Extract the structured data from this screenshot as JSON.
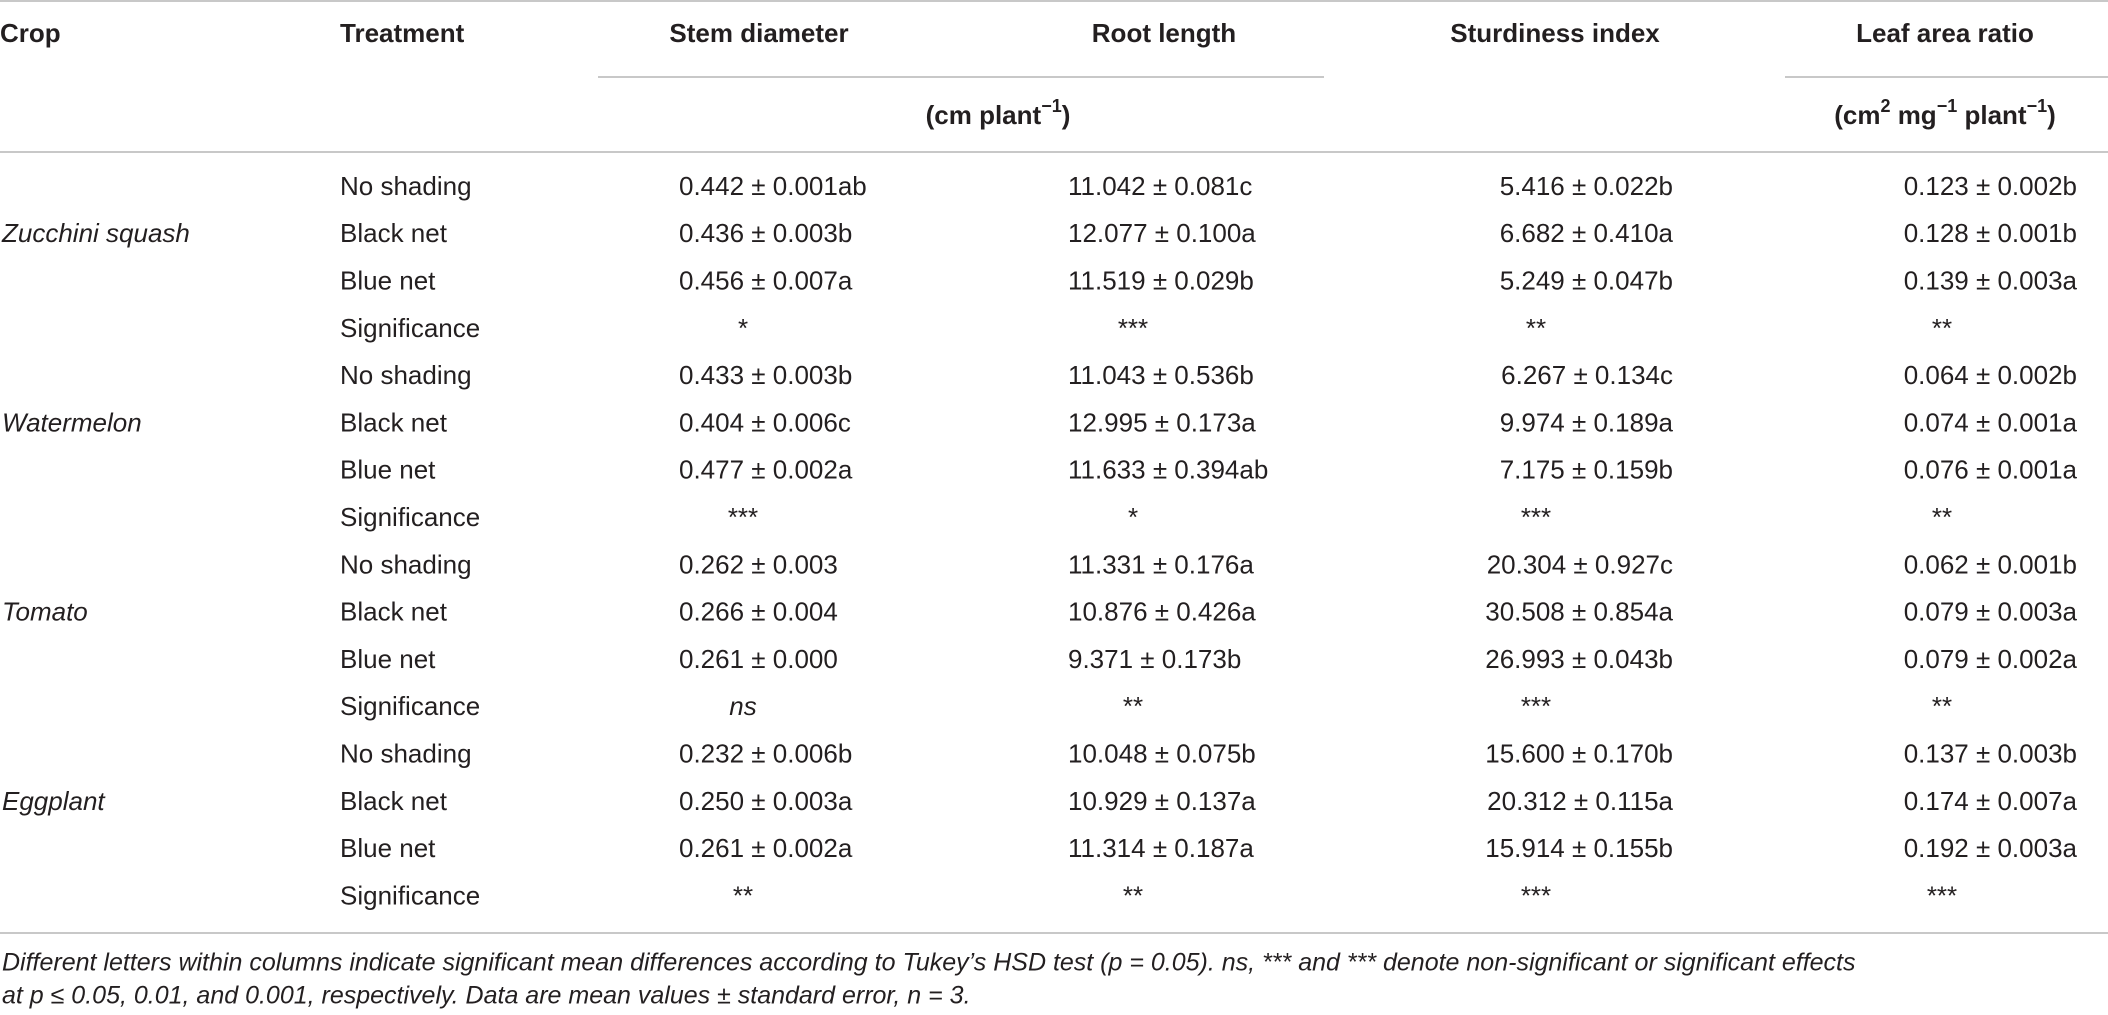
{
  "table": {
    "headers": [
      "Crop",
      "Treatment",
      "Stem diameter",
      "Root length",
      "Sturdiness index",
      "Leaf area ratio"
    ],
    "units_1": [
      "(cm plant",
      "−1",
      ")"
    ],
    "units_2": [
      "(cm",
      "2",
      " mg",
      "−1",
      " plant",
      "−1",
      ")"
    ],
    "groups": [
      {
        "crop": "Zucchini squash",
        "rows": [
          [
            "No shading",
            "0.442 ± 0.001ab",
            "11.042 ± 0.081c",
            "5.416 ± 0.022b",
            "0.123 ± 0.002b"
          ],
          [
            "Black net",
            "0.436 ± 0.003b",
            "12.077 ± 0.100a",
            "6.682 ± 0.410a",
            "0.128 ± 0.001b"
          ],
          [
            "Blue net",
            "0.456 ± 0.007a",
            "11.519 ± 0.029b",
            "5.249 ± 0.047b",
            "0.139 ± 0.003a"
          ],
          [
            "Significance",
            "*",
            "***",
            "**",
            "**"
          ]
        ]
      },
      {
        "crop": "Watermelon",
        "rows": [
          [
            "No shading",
            "0.433 ± 0.003b",
            "11.043 ± 0.536b",
            "6.267 ± 0.134c",
            "0.064 ± 0.002b"
          ],
          [
            "Black net",
            "0.404 ± 0.006c",
            "12.995 ± 0.173a",
            "9.974 ± 0.189a",
            "0.074 ± 0.001a"
          ],
          [
            "Blue net",
            "0.477 ± 0.002a",
            "11.633 ± 0.394ab",
            "7.175 ± 0.159b",
            "0.076 ± 0.001a"
          ],
          [
            "Significance",
            "***",
            "*",
            "***",
            "**"
          ]
        ]
      },
      {
        "crop": "Tomato",
        "rows": [
          [
            "No shading",
            "0.262 ± 0.003",
            "11.331 ± 0.176a",
            "20.304 ± 0.927c",
            "0.062 ± 0.001b"
          ],
          [
            "Black net",
            "0.266 ± 0.004",
            "10.876 ± 0.426a",
            "30.508 ± 0.854a",
            "0.079 ± 0.003a"
          ],
          [
            "Blue net",
            "0.261 ± 0.000",
            "9.371 ± 0.173b",
            "26.993 ± 0.043b",
            "0.079 ± 0.002a"
          ],
          [
            "Significance",
            "ns",
            "**",
            "***",
            "**"
          ]
        ]
      },
      {
        "crop": "Eggplant",
        "rows": [
          [
            "No shading",
            "0.232 ± 0.006b",
            "10.048 ± 0.075b",
            "15.600 ± 0.170b",
            "0.137 ± 0.003b"
          ],
          [
            "Black net",
            "0.250 ± 0.003a",
            "10.929 ± 0.137a",
            "20.312 ± 0.115a",
            "0.174 ± 0.007a"
          ],
          [
            "Blue net",
            "0.261 ± 0.002a",
            "11.314 ± 0.187a",
            "15.914 ± 0.155b",
            "0.192 ± 0.003a"
          ],
          [
            "Significance",
            "**",
            "**",
            "***",
            "***"
          ]
        ]
      }
    ],
    "footnote_lines": [
      "Different letters within columns indicate significant mean differences according to Tukey’s HSD test (p = 0.05). ns, *** and *** denote non-significant or significant effects",
      "at p ≤ 0.05, 0.01, and 0.001, respectively. Data are mean values ± standard error, n = 3."
    ]
  }
}
